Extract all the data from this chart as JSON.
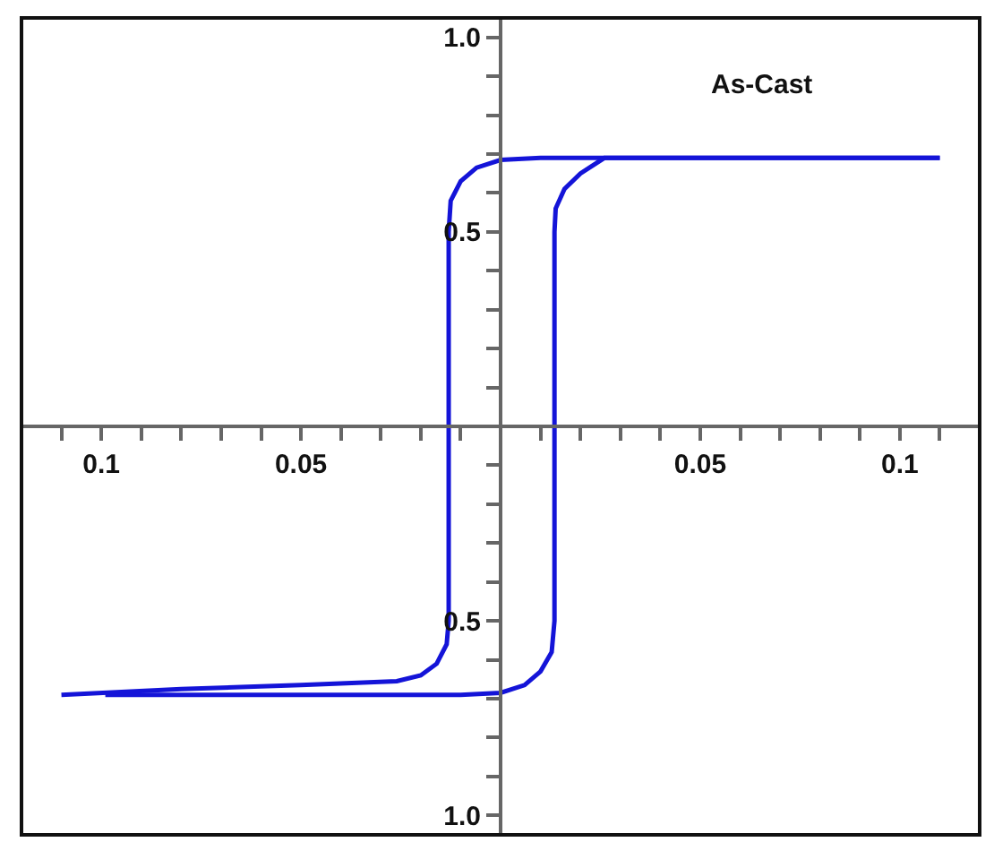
{
  "chart_data": {
    "type": "line",
    "annotations": [
      "As-Cast"
    ],
    "series": [
      {
        "color": "#1414d8",
        "x": [
          0.11,
          0.05,
          0.01,
          0.0,
          -0.006,
          -0.01,
          -0.0125,
          -0.013,
          -0.013,
          -0.013,
          -0.0135,
          -0.016,
          -0.02,
          -0.026,
          -0.05,
          -0.08,
          -0.11
        ],
        "values": [
          0.69,
          0.69,
          0.69,
          0.685,
          0.665,
          0.63,
          0.58,
          0.5,
          0,
          -0.5,
          -0.56,
          -0.61,
          -0.64,
          -0.655,
          -0.665,
          -0.675,
          -0.69
        ]
      },
      {
        "color": "#1414d8",
        "x": [
          -0.099,
          -0.05,
          -0.01,
          0.0,
          0.006,
          0.01,
          0.0128,
          0.0135,
          0.0135,
          0.0138,
          0.016,
          0.02,
          0.026,
          0.05,
          0.11
        ],
        "values": [
          -0.69,
          -0.69,
          -0.69,
          -0.685,
          -0.665,
          -0.63,
          -0.58,
          -0.5,
          0.5,
          0.56,
          0.61,
          0.65,
          0.69,
          0.69,
          0.69
        ]
      }
    ],
    "xlim": [
      -0.12,
      0.12
    ],
    "ylim": [
      -1.05,
      1.05
    ],
    "xticks": [
      {
        "value": -0.11,
        "label": null
      },
      {
        "value": -0.1,
        "label": "0.1"
      },
      {
        "value": -0.09,
        "label": null
      },
      {
        "value": -0.08,
        "label": null
      },
      {
        "value": -0.07,
        "label": null
      },
      {
        "value": -0.06,
        "label": null
      },
      {
        "value": -0.05,
        "label": "0.05"
      },
      {
        "value": -0.04,
        "label": null
      },
      {
        "value": -0.03,
        "label": null
      },
      {
        "value": -0.02,
        "label": null
      },
      {
        "value": -0.01,
        "label": null
      },
      {
        "value": 0.01,
        "label": null
      },
      {
        "value": 0.02,
        "label": null
      },
      {
        "value": 0.03,
        "label": null
      },
      {
        "value": 0.04,
        "label": null
      },
      {
        "value": 0.05,
        "label": "0.05"
      },
      {
        "value": 0.06,
        "label": null
      },
      {
        "value": 0.07,
        "label": null
      },
      {
        "value": 0.08,
        "label": null
      },
      {
        "value": 0.09,
        "label": null
      },
      {
        "value": 0.1,
        "label": "0.1"
      },
      {
        "value": 0.11,
        "label": null
      }
    ],
    "yticks": [
      {
        "value": -1.0,
        "label": "1.0"
      },
      {
        "value": -0.9,
        "label": null
      },
      {
        "value": -0.8,
        "label": null
      },
      {
        "value": -0.7,
        "label": null
      },
      {
        "value": -0.6,
        "label": null
      },
      {
        "value": -0.5,
        "label": "0.5"
      },
      {
        "value": -0.4,
        "label": null
      },
      {
        "value": -0.3,
        "label": null
      },
      {
        "value": -0.2,
        "label": null
      },
      {
        "value": -0.1,
        "label": null
      },
      {
        "value": 0.1,
        "label": null
      },
      {
        "value": 0.2,
        "label": null
      },
      {
        "value": 0.3,
        "label": null
      },
      {
        "value": 0.4,
        "label": null
      },
      {
        "value": 0.5,
        "label": "0.5"
      },
      {
        "value": 0.6,
        "label": null
      },
      {
        "value": 0.7,
        "label": null
      },
      {
        "value": 0.8,
        "label": null
      },
      {
        "value": 0.9,
        "label": null
      },
      {
        "value": 1.0,
        "label": "1.0"
      }
    ],
    "marker": "none",
    "line_style": "solid"
  }
}
